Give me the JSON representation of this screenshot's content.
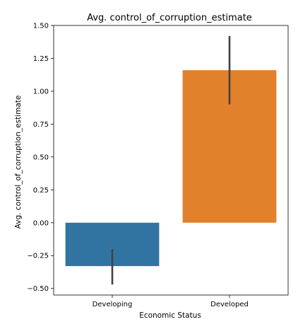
{
  "chart_data": {
    "type": "bar",
    "title": "Avg. control_of_corruption_estimate",
    "xlabel": "Economic Status",
    "ylabel": "Avg. control_of_corruption_estimate",
    "categories": [
      "Developing",
      "Developed"
    ],
    "values": [
      -0.33,
      1.16
    ],
    "error_bars": [
      {
        "low": -0.47,
        "high": -0.2
      },
      {
        "low": 0.9,
        "high": 1.42
      }
    ],
    "colors": [
      "#3274a1",
      "#e1812c"
    ],
    "error_bar_color": "#424242",
    "ylim": [
      -0.55,
      1.5
    ],
    "yticks": [
      -0.5,
      -0.25,
      0.0,
      0.25,
      0.5,
      0.75,
      1.0,
      1.25,
      1.5
    ],
    "ytick_labels": [
      "−0.50",
      "−0.25",
      "0.00",
      "0.25",
      "0.50",
      "0.75",
      "1.00",
      "1.25",
      "1.50"
    ],
    "grid": false,
    "legend": "none"
  }
}
